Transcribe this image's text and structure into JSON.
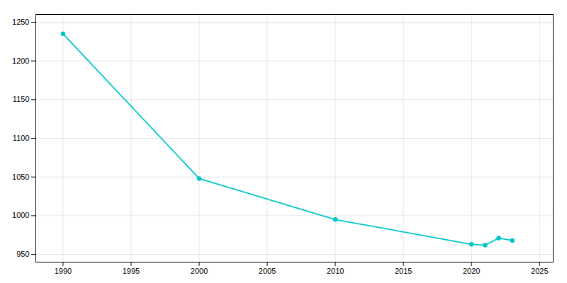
{
  "chart_data": {
    "type": "line",
    "x": [
      1990,
      2000,
      2010,
      2020,
      2021,
      2022,
      2023
    ],
    "values": [
      1235,
      1048,
      995,
      963,
      962,
      971,
      968
    ],
    "color": "#00C5C8",
    "marker": "circle",
    "xlim": [
      1988,
      2026
    ],
    "ylim": [
      940,
      1260
    ],
    "xticks": [
      1990,
      1995,
      2000,
      2005,
      2010,
      2015,
      2020,
      2025
    ],
    "yticks": [
      950,
      1000,
      1050,
      1100,
      1150,
      1200,
      1250
    ],
    "grid": true
  }
}
